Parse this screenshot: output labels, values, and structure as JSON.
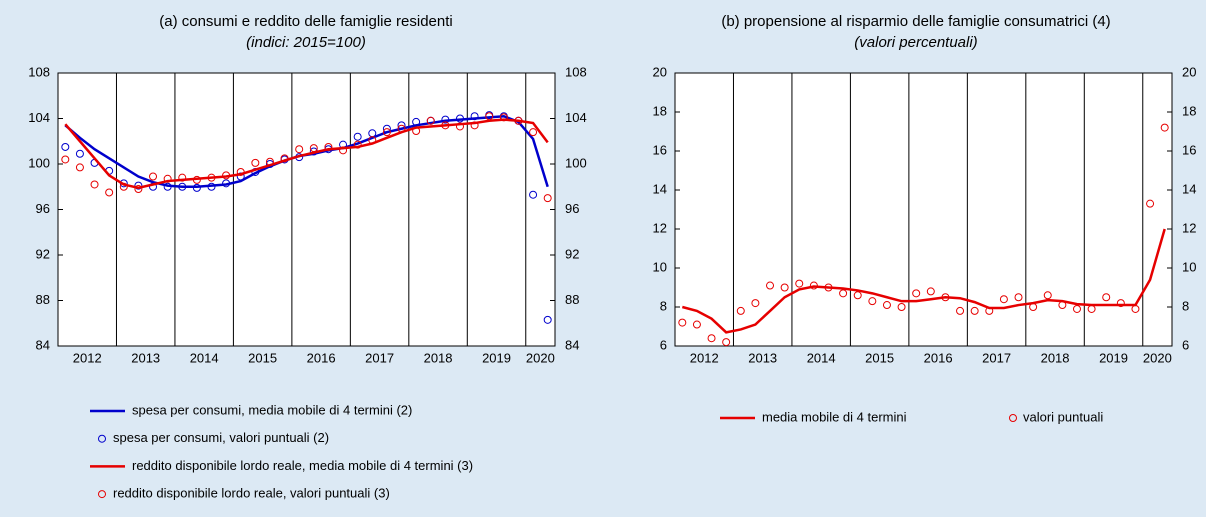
{
  "chart_data": [
    {
      "type": "line",
      "title": "(a) consumi e reddito delle famiglie residenti",
      "subtitle": "(indici: 2015=100)",
      "categories": [
        "2012",
        null,
        null,
        null,
        "2013",
        null,
        null,
        null,
        "2014",
        null,
        null,
        null,
        "2015",
        null,
        null,
        null,
        "2016",
        null,
        null,
        null,
        "2017",
        null,
        null,
        null,
        "2018",
        null,
        null,
        null,
        "2019",
        null,
        null,
        null,
        "2020",
        null
      ],
      "ylim": [
        84,
        108
      ],
      "yticks": [
        84,
        88,
        92,
        96,
        100,
        104,
        108
      ],
      "y2lim": [
        84,
        108
      ],
      "y2ticks": [
        84,
        88,
        92,
        96,
        100,
        104,
        108
      ],
      "legend": "bottom",
      "series": [
        {
          "name": "spesa per consumi, media mobile di 4 termini (2)",
          "color": "#0000cc",
          "style": "line",
          "values": [
            103.4,
            102.3,
            101.3,
            100.5,
            99.7,
            98.9,
            98.4,
            98.1,
            98.0,
            98.0,
            98.1,
            98.2,
            98.5,
            99.2,
            99.8,
            100.3,
            100.7,
            100.9,
            101.2,
            101.4,
            101.8,
            102.3,
            102.8,
            103.1,
            103.4,
            103.6,
            103.8,
            103.9,
            104.0,
            104.1,
            104.2,
            103.7,
            102.2,
            98.0
          ]
        },
        {
          "name": "spesa per consumi, valori puntuali (2)",
          "color": "#0000cc",
          "style": "points",
          "values": [
            101.5,
            100.9,
            100.1,
            99.4,
            98.3,
            98.1,
            98.0,
            98.0,
            98.0,
            97.9,
            98.0,
            98.3,
            98.9,
            99.3,
            100.0,
            100.4,
            100.6,
            101.1,
            101.3,
            101.7,
            102.4,
            102.7,
            103.1,
            103.4,
            103.7,
            103.8,
            103.9,
            104.0,
            104.2,
            104.3,
            104.2,
            103.8,
            97.3,
            86.3
          ]
        },
        {
          "name": "reddito disponibile lordo reale, media mobile di 4 termini (3)",
          "color": "#e60000",
          "style": "line",
          "values": [
            103.5,
            102.0,
            100.5,
            99.0,
            98.2,
            97.9,
            98.2,
            98.5,
            98.6,
            98.7,
            98.8,
            98.9,
            99.1,
            99.5,
            99.9,
            100.3,
            100.7,
            101.0,
            101.3,
            101.4,
            101.5,
            101.8,
            102.3,
            102.8,
            103.2,
            103.3,
            103.4,
            103.5,
            103.6,
            103.8,
            103.9,
            103.8,
            103.6,
            101.9
          ]
        },
        {
          "name": "reddito disponibile lordo reale, valori puntuali (3)",
          "color": "#e60000",
          "style": "points",
          "values": [
            100.4,
            99.7,
            98.2,
            97.5,
            98.0,
            97.8,
            98.9,
            98.7,
            98.8,
            98.6,
            98.8,
            99.0,
            99.3,
            100.1,
            100.2,
            100.5,
            101.3,
            101.4,
            101.5,
            101.2,
            101.7,
            102.1,
            102.8,
            103.1,
            102.9,
            103.8,
            103.4,
            103.3,
            103.4,
            104.2,
            104.1,
            103.8,
            102.8,
            97.0
          ]
        }
      ]
    },
    {
      "type": "line",
      "title": "(b) propensione al risparmio delle famiglie consumatrici (4)",
      "subtitle": "(valori percentuali)",
      "categories": [
        "2012",
        null,
        null,
        null,
        "2013",
        null,
        null,
        null,
        "2014",
        null,
        null,
        null,
        "2015",
        null,
        null,
        null,
        "2016",
        null,
        null,
        null,
        "2017",
        null,
        null,
        null,
        "2018",
        null,
        null,
        null,
        "2019",
        null,
        null,
        null,
        "2020",
        null
      ],
      "ylim": [
        6,
        20
      ],
      "yticks": [
        6,
        8,
        10,
        12,
        14,
        16,
        18,
        20
      ],
      "y2lim": [
        6,
        20
      ],
      "y2ticks": [
        6,
        8,
        10,
        12,
        14,
        16,
        18,
        20
      ],
      "legend": "bottom",
      "series": [
        {
          "name": "media mobile di 4 termini",
          "color": "#e60000",
          "style": "line",
          "values": [
            8.0,
            7.8,
            7.4,
            6.7,
            6.85,
            7.1,
            7.8,
            8.5,
            8.9,
            9.05,
            9.0,
            8.95,
            8.85,
            8.7,
            8.5,
            8.3,
            8.3,
            8.4,
            8.5,
            8.45,
            8.25,
            7.95,
            7.95,
            8.1,
            8.2,
            8.35,
            8.3,
            8.15,
            8.1,
            8.1,
            8.1,
            8.1,
            9.4,
            12.0
          ]
        },
        {
          "name": "valori puntuali",
          "color": "#e60000",
          "style": "points",
          "values": [
            7.2,
            7.1,
            6.4,
            6.2,
            7.8,
            8.2,
            9.1,
            9.0,
            9.2,
            9.1,
            9.0,
            8.7,
            8.6,
            8.3,
            8.1,
            8.0,
            8.7,
            8.8,
            8.5,
            7.8,
            7.8,
            7.8,
            8.4,
            8.5,
            8.0,
            8.6,
            8.1,
            7.9,
            7.9,
            8.5,
            8.2,
            7.9,
            13.3,
            17.2
          ]
        }
      ]
    }
  ]
}
